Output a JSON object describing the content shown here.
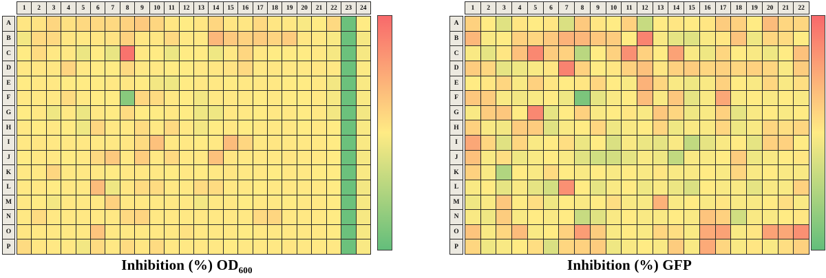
{
  "figure": {
    "description": "Two 384-well plate heatmaps with red-yellow-green color scale and vertical gradient colorbars"
  },
  "chart_data": [
    {
      "type": "heatmap",
      "title": "Inhibition (%) OD600",
      "title_rich": {
        "main": "Inhibition (%) OD",
        "subscript": "600"
      },
      "x_labels": [
        "1",
        "2",
        "3",
        "4",
        "5",
        "6",
        "7",
        "8",
        "9",
        "10",
        "11",
        "12",
        "13",
        "14",
        "15",
        "16",
        "17",
        "18",
        "19",
        "20",
        "21",
        "22",
        "23",
        "24"
      ],
      "y_labels": [
        "A",
        "B",
        "C",
        "D",
        "E",
        "F",
        "G",
        "H",
        "I",
        "J",
        "K",
        "L",
        "M",
        "N",
        "O",
        "P"
      ],
      "values": [
        [
          52,
          53,
          58,
          54,
          57,
          57,
          57,
          60,
          63,
          58,
          52,
          50,
          52,
          58,
          52,
          52,
          57,
          52,
          51,
          48,
          50,
          57,
          3,
          50
        ],
        [
          46,
          57,
          57,
          52,
          51,
          52,
          53,
          60,
          52,
          52,
          57,
          51,
          51,
          70,
          63,
          60,
          62,
          59,
          62,
          52,
          51,
          48,
          3,
          47
        ],
        [
          50,
          56,
          51,
          51,
          44,
          50,
          43,
          96,
          51,
          50,
          44,
          50,
          50,
          45,
          51,
          58,
          51,
          50,
          50,
          50,
          51,
          47,
          3,
          47
        ],
        [
          51,
          52,
          52,
          59,
          51,
          50,
          50,
          57,
          51,
          51,
          50,
          50,
          51,
          52,
          53,
          57,
          51,
          52,
          51,
          51,
          52,
          51,
          3,
          49
        ],
        [
          50,
          51,
          51,
          50,
          50,
          50,
          51,
          52,
          50,
          46,
          45,
          50,
          51,
          51,
          50,
          51,
          51,
          51,
          50,
          50,
          51,
          46,
          3,
          48
        ],
        [
          51,
          51,
          51,
          56,
          51,
          50,
          50,
          12,
          58,
          56,
          51,
          50,
          46,
          51,
          51,
          51,
          50,
          51,
          50,
          50,
          51,
          47,
          3,
          48
        ],
        [
          50,
          51,
          45,
          51,
          44,
          51,
          50,
          56,
          50,
          50,
          51,
          50,
          45,
          45,
          51,
          51,
          50,
          51,
          51,
          50,
          51,
          46,
          3,
          46
        ],
        [
          51,
          50,
          51,
          50,
          45,
          58,
          51,
          51,
          56,
          51,
          57,
          51,
          46,
          50,
          51,
          50,
          51,
          51,
          51,
          50,
          51,
          50,
          3,
          48
        ],
        [
          51,
          52,
          51,
          51,
          51,
          51,
          51,
          52,
          56,
          66,
          51,
          51,
          50,
          51,
          68,
          58,
          51,
          52,
          51,
          51,
          51,
          50,
          3,
          48
        ],
        [
          50,
          51,
          51,
          50,
          51,
          57,
          63,
          51,
          62,
          51,
          57,
          51,
          51,
          66,
          52,
          51,
          51,
          51,
          52,
          51,
          51,
          50,
          3,
          47
        ],
        [
          51,
          51,
          58,
          51,
          51,
          51,
          50,
          51,
          51,
          51,
          50,
          51,
          50,
          51,
          52,
          51,
          51,
          50,
          51,
          51,
          50,
          50,
          3,
          48
        ],
        [
          51,
          51,
          50,
          51,
          51,
          68,
          45,
          52,
          56,
          56,
          51,
          51,
          56,
          56,
          51,
          51,
          50,
          51,
          51,
          51,
          51,
          50,
          3,
          46
        ],
        [
          51,
          50,
          46,
          51,
          51,
          51,
          60,
          51,
          51,
          51,
          51,
          51,
          46,
          51,
          51,
          50,
          51,
          51,
          50,
          51,
          51,
          50,
          3,
          47
        ],
        [
          51,
          56,
          51,
          51,
          51,
          51,
          51,
          57,
          59,
          51,
          51,
          51,
          51,
          51,
          51,
          51,
          57,
          58,
          51,
          51,
          51,
          50,
          3,
          47
        ],
        [
          52,
          51,
          51,
          51,
          51,
          65,
          51,
          51,
          51,
          51,
          51,
          54,
          51,
          51,
          51,
          50,
          51,
          51,
          51,
          51,
          51,
          50,
          3,
          47
        ],
        [
          56,
          52,
          51,
          51,
          46,
          56,
          51,
          56,
          52,
          56,
          51,
          51,
          51,
          51,
          50,
          51,
          51,
          51,
          52,
          51,
          51,
          51,
          3,
          48
        ]
      ],
      "colorscale": {
        "min": {
          "value": 0,
          "color": "#63BE7B"
        },
        "mid": {
          "value": 50,
          "color": "#FFEB84"
        },
        "max": {
          "value": 100,
          "color": "#F8696B"
        }
      },
      "colorbar": {
        "position": "right",
        "orientation": "vertical",
        "top": "high/red",
        "bottom": "low/green"
      }
    },
    {
      "type": "heatmap",
      "title": "Inhibition (%) GFP",
      "title_rich": {
        "main": "Inhibition (%) GFP",
        "subscript": ""
      },
      "x_labels": [
        "1",
        "2",
        "3",
        "4",
        "5",
        "6",
        "7",
        "8",
        "9",
        "10",
        "11",
        "12",
        "13",
        "14",
        "15",
        "16",
        "17",
        "18",
        "19",
        "20",
        "21",
        "22"
      ],
      "y_labels": [
        "A",
        "B",
        "C",
        "D",
        "E",
        "F",
        "G",
        "H",
        "I",
        "J",
        "K",
        "L",
        "M",
        "N",
        "O",
        "P"
      ],
      "values": [
        [
          60,
          50,
          40,
          52,
          50,
          52,
          38,
          63,
          52,
          50,
          60,
          32,
          50,
          52,
          50,
          52,
          62,
          60,
          50,
          68,
          58,
          58
        ],
        [
          70,
          48,
          50,
          60,
          58,
          63,
          72,
          70,
          64,
          62,
          50,
          90,
          48,
          42,
          40,
          48,
          52,
          65,
          45,
          58,
          56,
          50
        ],
        [
          48,
          42,
          52,
          66,
          88,
          62,
          60,
          28,
          50,
          60,
          85,
          60,
          50,
          78,
          48,
          45,
          58,
          50,
          48,
          45,
          50,
          66
        ],
        [
          62,
          58,
          42,
          45,
          48,
          52,
          90,
          60,
          50,
          52,
          60,
          66,
          52,
          60,
          62,
          58,
          60,
          58,
          60,
          58,
          48,
          62
        ],
        [
          50,
          52,
          58,
          48,
          60,
          52,
          50,
          52,
          58,
          50,
          48,
          72,
          58,
          48,
          45,
          48,
          60,
          50,
          48,
          58,
          48,
          55
        ],
        [
          64,
          62,
          48,
          46,
          48,
          50,
          45,
          8,
          42,
          48,
          50,
          68,
          48,
          64,
          42,
          48,
          76,
          48,
          50,
          48,
          50,
          48
        ],
        [
          48,
          62,
          64,
          50,
          88,
          42,
          50,
          60,
          48,
          50,
          52,
          48,
          64,
          58,
          45,
          48,
          60,
          42,
          48,
          50,
          48,
          50
        ],
        [
          60,
          48,
          46,
          62,
          62,
          40,
          48,
          50,
          58,
          45,
          48,
          50,
          58,
          45,
          48,
          48,
          58,
          45,
          48,
          58,
          55,
          58
        ],
        [
          76,
          58,
          40,
          58,
          48,
          50,
          55,
          44,
          50,
          38,
          48,
          44,
          42,
          48,
          30,
          42,
          48,
          50,
          42,
          60,
          60,
          50
        ],
        [
          66,
          48,
          55,
          45,
          48,
          50,
          48,
          40,
          35,
          36,
          42,
          48,
          45,
          30,
          48,
          48,
          50,
          62,
          45,
          48,
          50,
          52
        ],
        [
          60,
          48,
          25,
          50,
          48,
          56,
          50,
          48,
          50,
          48,
          50,
          48,
          52,
          48,
          48,
          50,
          48,
          58,
          48,
          50,
          48,
          48
        ],
        [
          48,
          50,
          42,
          48,
          42,
          36,
          85,
          50,
          42,
          48,
          50,
          45,
          48,
          44,
          38,
          50,
          48,
          48,
          42,
          48,
          48,
          60
        ],
        [
          45,
          48,
          64,
          50,
          55,
          45,
          50,
          48,
          50,
          55,
          48,
          48,
          72,
          48,
          50,
          48,
          52,
          48,
          48,
          50,
          55,
          48
        ],
        [
          48,
          45,
          62,
          48,
          50,
          48,
          50,
          32,
          40,
          48,
          50,
          48,
          48,
          50,
          48,
          65,
          60,
          35,
          48,
          48,
          50,
          52
        ],
        [
          65,
          48,
          58,
          68,
          48,
          50,
          60,
          80,
          62,
          48,
          50,
          48,
          58,
          55,
          48,
          75,
          78,
          48,
          52,
          78,
          76,
          85
        ],
        [
          58,
          45,
          48,
          50,
          55,
          38,
          58,
          60,
          62,
          45,
          48,
          50,
          48,
          62,
          48,
          75,
          58,
          48,
          52,
          48,
          55,
          60
        ]
      ],
      "colorscale": {
        "min": {
          "value": 0,
          "color": "#63BE7B"
        },
        "mid": {
          "value": 50,
          "color": "#FFEB84"
        },
        "max": {
          "value": 100,
          "color": "#F8696B"
        }
      },
      "colorbar": {
        "position": "right",
        "orientation": "vertical",
        "top": "high/red",
        "bottom": "low/green"
      }
    }
  ],
  "style": {
    "header_bg": "#ECE9E0",
    "grid_line_color": "#2a2a2a",
    "text_color": "#111111"
  }
}
